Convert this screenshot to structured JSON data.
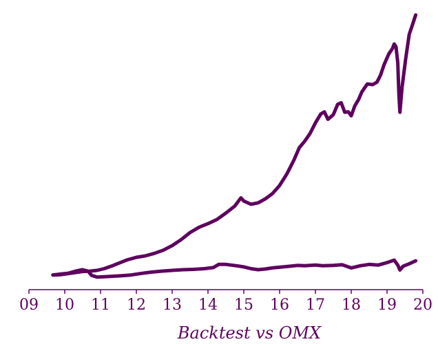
{
  "colors": {
    "series": "#5e005e",
    "axis": "#5e005e",
    "text": "#5e005e",
    "background": "#ffffff"
  },
  "chart_data": {
    "type": "line",
    "title": "Backtest vs OMX",
    "xlabel": "",
    "ylabel": "",
    "grid": false,
    "legend": "none",
    "xlim": [
      9,
      20
    ],
    "ylim": [
      0.6,
      16
    ],
    "x_ticks": [
      9,
      10,
      11,
      12,
      13,
      14,
      15,
      16,
      17,
      18,
      19,
      20
    ],
    "x_tick_labels": [
      "09",
      "10",
      "11",
      "12",
      "13",
      "14",
      "15",
      "16",
      "17",
      "18",
      "19",
      "20"
    ],
    "series": [
      {
        "points": [
          [
            9.67,
            1.0
          ],
          [
            9.9,
            1.02
          ],
          [
            10.1,
            1.08
          ],
          [
            10.3,
            1.14
          ],
          [
            10.5,
            1.2
          ],
          [
            10.7,
            1.22
          ],
          [
            10.9,
            1.26
          ],
          [
            11.1,
            1.36
          ],
          [
            11.3,
            1.5
          ],
          [
            11.5,
            1.66
          ],
          [
            11.75,
            1.86
          ],
          [
            12.0,
            2.0
          ],
          [
            12.25,
            2.08
          ],
          [
            12.5,
            2.22
          ],
          [
            12.75,
            2.4
          ],
          [
            13.0,
            2.66
          ],
          [
            13.25,
            3.0
          ],
          [
            13.5,
            3.4
          ],
          [
            13.75,
            3.7
          ],
          [
            14.0,
            3.9
          ],
          [
            14.25,
            4.14
          ],
          [
            14.5,
            4.5
          ],
          [
            14.75,
            4.9
          ],
          [
            14.92,
            5.36
          ],
          [
            15.0,
            5.18
          ],
          [
            15.2,
            5.0
          ],
          [
            15.4,
            5.08
          ],
          [
            15.6,
            5.3
          ],
          [
            15.8,
            5.6
          ],
          [
            16.0,
            6.06
          ],
          [
            16.2,
            6.7
          ],
          [
            16.4,
            7.5
          ],
          [
            16.55,
            8.2
          ],
          [
            16.7,
            8.56
          ],
          [
            16.85,
            9.0
          ],
          [
            17.0,
            9.6
          ],
          [
            17.15,
            10.1
          ],
          [
            17.25,
            10.22
          ],
          [
            17.35,
            9.8
          ],
          [
            17.5,
            10.06
          ],
          [
            17.62,
            10.64
          ],
          [
            17.72,
            10.74
          ],
          [
            17.82,
            10.2
          ],
          [
            17.92,
            10.22
          ],
          [
            18.0,
            10.0
          ],
          [
            18.1,
            10.56
          ],
          [
            18.2,
            10.9
          ],
          [
            18.3,
            11.36
          ],
          [
            18.45,
            11.8
          ],
          [
            18.6,
            11.76
          ],
          [
            18.72,
            11.9
          ],
          [
            18.82,
            12.3
          ],
          [
            18.92,
            12.9
          ],
          [
            19.05,
            13.5
          ],
          [
            19.15,
            13.8
          ],
          [
            19.2,
            14.06
          ],
          [
            19.25,
            13.9
          ],
          [
            19.3,
            13.0
          ],
          [
            19.33,
            11.2
          ],
          [
            19.36,
            10.2
          ],
          [
            19.42,
            11.6
          ],
          [
            19.52,
            13.2
          ],
          [
            19.62,
            14.6
          ],
          [
            19.72,
            15.2
          ],
          [
            19.8,
            15.7
          ]
        ]
      },
      {
        "points": [
          [
            9.67,
            1.0
          ],
          [
            9.9,
            1.06
          ],
          [
            10.1,
            1.1
          ],
          [
            10.3,
            1.22
          ],
          [
            10.5,
            1.3
          ],
          [
            10.65,
            1.22
          ],
          [
            10.75,
            0.98
          ],
          [
            10.9,
            0.88
          ],
          [
            11.1,
            0.9
          ],
          [
            11.35,
            0.93
          ],
          [
            11.6,
            0.96
          ],
          [
            11.85,
            1.0
          ],
          [
            12.1,
            1.08
          ],
          [
            12.4,
            1.16
          ],
          [
            12.7,
            1.22
          ],
          [
            13.0,
            1.26
          ],
          [
            13.3,
            1.3
          ],
          [
            13.6,
            1.32
          ],
          [
            13.9,
            1.36
          ],
          [
            14.15,
            1.42
          ],
          [
            14.3,
            1.6
          ],
          [
            14.5,
            1.6
          ],
          [
            14.8,
            1.52
          ],
          [
            15.0,
            1.46
          ],
          [
            15.2,
            1.36
          ],
          [
            15.4,
            1.3
          ],
          [
            15.6,
            1.34
          ],
          [
            15.8,
            1.4
          ],
          [
            16.0,
            1.44
          ],
          [
            16.3,
            1.5
          ],
          [
            16.5,
            1.54
          ],
          [
            16.7,
            1.52
          ],
          [
            17.0,
            1.56
          ],
          [
            17.2,
            1.52
          ],
          [
            17.5,
            1.54
          ],
          [
            17.75,
            1.58
          ],
          [
            18.0,
            1.4
          ],
          [
            18.25,
            1.52
          ],
          [
            18.5,
            1.6
          ],
          [
            18.75,
            1.56
          ],
          [
            19.0,
            1.7
          ],
          [
            19.2,
            1.84
          ],
          [
            19.3,
            1.56
          ],
          [
            19.36,
            1.28
          ],
          [
            19.45,
            1.5
          ],
          [
            19.6,
            1.62
          ],
          [
            19.8,
            1.8
          ]
        ]
      }
    ]
  }
}
